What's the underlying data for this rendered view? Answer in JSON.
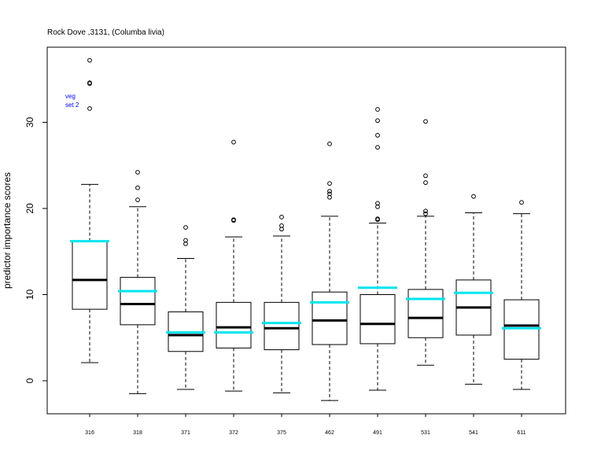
{
  "chart_data": {
    "type": "box",
    "title": "Rock Dove ,3131, (Columba livia)",
    "xlabel": "",
    "ylabel": "predictor importance scores",
    "ylim": [
      -4,
      39
    ],
    "yticks": [
      0,
      10,
      20,
      30
    ],
    "grid": false,
    "annotation": [
      "veg",
      "set 2"
    ],
    "colors": {
      "box": "#000000",
      "median": "#000000",
      "mean_marker": "#00e5ee",
      "annotation": "#0000ff"
    },
    "categories": [
      "316",
      "318",
      "371",
      "372",
      "375",
      "462",
      "491",
      "531",
      "541",
      "611"
    ],
    "boxes": [
      {
        "label": "316",
        "whisker_low": 2.1,
        "q1": 8.3,
        "median": 11.7,
        "q3": 16.2,
        "whisker_high": 22.8,
        "cyan": 16.2,
        "outliers": [
          31.6,
          34.5,
          34.6,
          37.2
        ]
      },
      {
        "label": "318",
        "whisker_low": -1.5,
        "q1": 6.5,
        "median": 8.9,
        "q3": 12.0,
        "whisker_high": 20.2,
        "cyan": 10.4,
        "outliers": [
          21.0,
          22.4,
          24.2
        ]
      },
      {
        "label": "371",
        "whisker_low": -1.0,
        "q1": 3.4,
        "median": 5.3,
        "q3": 8.0,
        "whisker_high": 14.2,
        "cyan": 5.6,
        "outliers": [
          15.9,
          16.3,
          17.8
        ]
      },
      {
        "label": "372",
        "whisker_low": -1.2,
        "q1": 3.8,
        "median": 6.2,
        "q3": 9.1,
        "whisker_high": 16.7,
        "cyan": 5.6,
        "outliers": [
          18.6,
          18.7,
          27.7
        ]
      },
      {
        "label": "375",
        "whisker_low": -1.4,
        "q1": 3.6,
        "median": 6.1,
        "q3": 9.1,
        "whisker_high": 16.8,
        "cyan": 6.7,
        "outliers": [
          17.6,
          18.0,
          19.0
        ]
      },
      {
        "label": "462",
        "whisker_low": -2.3,
        "q1": 4.2,
        "median": 7.0,
        "q3": 10.3,
        "whisker_high": 19.1,
        "cyan": 9.1,
        "outliers": [
          21.3,
          21.7,
          22.0,
          22.9,
          27.5
        ]
      },
      {
        "label": "491",
        "whisker_low": -1.1,
        "q1": 4.3,
        "median": 6.6,
        "q3": 10.0,
        "whisker_high": 18.3,
        "cyan": 10.8,
        "outliers": [
          18.7,
          18.8,
          20.2,
          20.6,
          27.1,
          28.5,
          30.2,
          31.5
        ]
      },
      {
        "label": "531",
        "whisker_low": 1.8,
        "q1": 5.0,
        "median": 7.3,
        "q3": 10.6,
        "whisker_high": 19.1,
        "cyan": 9.5,
        "outliers": [
          19.4,
          19.7,
          23.0,
          23.8,
          30.1
        ]
      },
      {
        "label": "541",
        "whisker_low": -0.4,
        "q1": 5.3,
        "median": 8.5,
        "q3": 11.7,
        "whisker_high": 19.5,
        "cyan": 10.2,
        "outliers": [
          21.4
        ]
      },
      {
        "label": "611",
        "whisker_low": -1.0,
        "q1": 2.5,
        "median": 6.4,
        "q3": 9.4,
        "whisker_high": 19.4,
        "cyan": 6.1,
        "outliers": [
          20.7
        ]
      }
    ]
  }
}
